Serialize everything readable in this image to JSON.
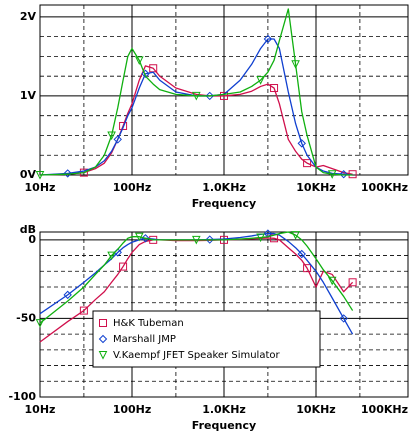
{
  "chart_data": [
    {
      "type": "line",
      "xscale": "log",
      "xlabel": "Frequency",
      "xlim": [
        10,
        100000
      ],
      "xticks": [
        {
          "value": 10,
          "label": "10Hz"
        },
        {
          "value": 100,
          "label": "100Hz"
        },
        {
          "value": 1000,
          "label": "1.0KHz"
        },
        {
          "value": 10000,
          "label": "10KHz"
        },
        {
          "value": 100000,
          "label": "100KHz"
        }
      ],
      "minor_xticks": [
        30,
        300,
        3000,
        30000
      ],
      "ylim": [
        0,
        2.15
      ],
      "yticks": [
        {
          "value": 0,
          "label": "0V"
        },
        {
          "value": 1,
          "label": "1V"
        },
        {
          "value": 2,
          "label": "2V"
        }
      ],
      "minor_yticks": [
        0.25,
        0.5,
        0.75,
        1.25,
        1.5,
        1.75
      ],
      "grid": true,
      "x": [
        10,
        20,
        30,
        40,
        50,
        60,
        70,
        80,
        90,
        100,
        120,
        140,
        170,
        200,
        300,
        500,
        700,
        1000,
        1500,
        2000,
        2500,
        3000,
        3500,
        4000,
        5000,
        6000,
        7000,
        8000,
        10000,
        12000,
        15000,
        20000,
        25000
      ],
      "series": [
        {
          "color": "#d0104c",
          "marker": "square",
          "values": [
            0,
            0.01,
            0.03,
            0.08,
            0.15,
            0.28,
            0.45,
            0.62,
            0.78,
            0.9,
            1.2,
            1.38,
            1.35,
            1.25,
            1.1,
            1.02,
            1.0,
            1.0,
            1.02,
            1.06,
            1.12,
            1.15,
            1.1,
            0.9,
            0.45,
            0.3,
            0.2,
            0.15,
            0.1,
            0.12,
            0.08,
            0.03,
            0.01
          ]
        },
        {
          "color": "#1040d0",
          "marker": "diamond",
          "values": [
            0,
            0.02,
            0.05,
            0.1,
            0.18,
            0.3,
            0.45,
            0.6,
            0.75,
            0.85,
            1.1,
            1.28,
            1.3,
            1.2,
            1.05,
            1.0,
            1.0,
            1.02,
            1.2,
            1.4,
            1.6,
            1.72,
            1.72,
            1.6,
            1.05,
            0.65,
            0.4,
            0.25,
            0.1,
            0.05,
            0.02,
            0.01,
            0
          ]
        },
        {
          "color": "#10b010",
          "marker": "triangle-down",
          "values": [
            0,
            0.01,
            0.03,
            0.1,
            0.25,
            0.5,
            0.85,
            1.2,
            1.5,
            1.6,
            1.45,
            1.25,
            1.15,
            1.08,
            1.02,
            1.0,
            1.0,
            1.02,
            1.05,
            1.12,
            1.2,
            1.3,
            1.45,
            1.7,
            2.1,
            1.4,
            0.8,
            0.5,
            0.1,
            0.03,
            0.01,
            0,
            0
          ]
        }
      ]
    },
    {
      "type": "line",
      "xscale": "log",
      "xlabel": "Frequency",
      "ylabel": "dB",
      "xlim": [
        10,
        100000
      ],
      "xticks": [
        {
          "value": 10,
          "label": "10Hz"
        },
        {
          "value": 100,
          "label": "100Hz"
        },
        {
          "value": 1000,
          "label": "1.0KHz"
        },
        {
          "value": 10000,
          "label": "10KHz"
        },
        {
          "value": 100000,
          "label": "100KHz"
        }
      ],
      "minor_xticks": [
        30,
        300,
        3000,
        30000
      ],
      "ylim": [
        -100,
        5
      ],
      "yticks": [
        -100,
        -50,
        0
      ],
      "minor_yticks": [
        -90,
        -80,
        -70,
        -60,
        -40,
        -30,
        -20,
        -10
      ],
      "grid": true,
      "x": [
        10,
        20,
        30,
        40,
        50,
        60,
        70,
        80,
        90,
        100,
        120,
        140,
        170,
        200,
        300,
        500,
        700,
        1000,
        1500,
        2000,
        2500,
        3000,
        3500,
        4000,
        5000,
        6000,
        7000,
        8000,
        10000,
        12000,
        15000,
        20000,
        25000
      ],
      "series": [
        {
          "name": "H&K Tubeman",
          "color": "#d0104c",
          "marker": "square",
          "values": [
            -65,
            -52,
            -45,
            -38,
            -33,
            -27,
            -22,
            -17,
            -12,
            -8,
            -3,
            -1,
            0,
            0,
            -0.5,
            -0.5,
            -0.3,
            0,
            0.3,
            0.6,
            1,
            1.2,
            1,
            0,
            -5,
            -9,
            -13,
            -18,
            -30,
            -20,
            -22,
            -33,
            -27
          ]
        },
        {
          "name": "Marshall JMP",
          "color": "#1040d0",
          "marker": "diamond",
          "values": [
            -47,
            -35,
            -27,
            -21,
            -16,
            -12,
            -8,
            -5,
            -3,
            -1.5,
            0,
            1,
            0.5,
            0,
            0,
            0,
            0.2,
            0.5,
            1.5,
            2.5,
            3.5,
            4,
            4,
            3,
            -1,
            -5,
            -9,
            -13,
            -20,
            -27,
            -37,
            -50,
            -60
          ]
        },
        {
          "name": "V.Kaempf JFET Speaker Simulator",
          "color": "#10b010",
          "marker": "triangle-down",
          "values": [
            -53,
            -39,
            -30,
            -22,
            -16,
            -10,
            -6,
            -2,
            1,
            2,
            2,
            1,
            0,
            0,
            0,
            0,
            0,
            0,
            0.5,
            1,
            1.5,
            2,
            3,
            4,
            5,
            3,
            0,
            -4,
            -12,
            -19,
            -26,
            -36,
            -45
          ]
        }
      ]
    }
  ]
}
